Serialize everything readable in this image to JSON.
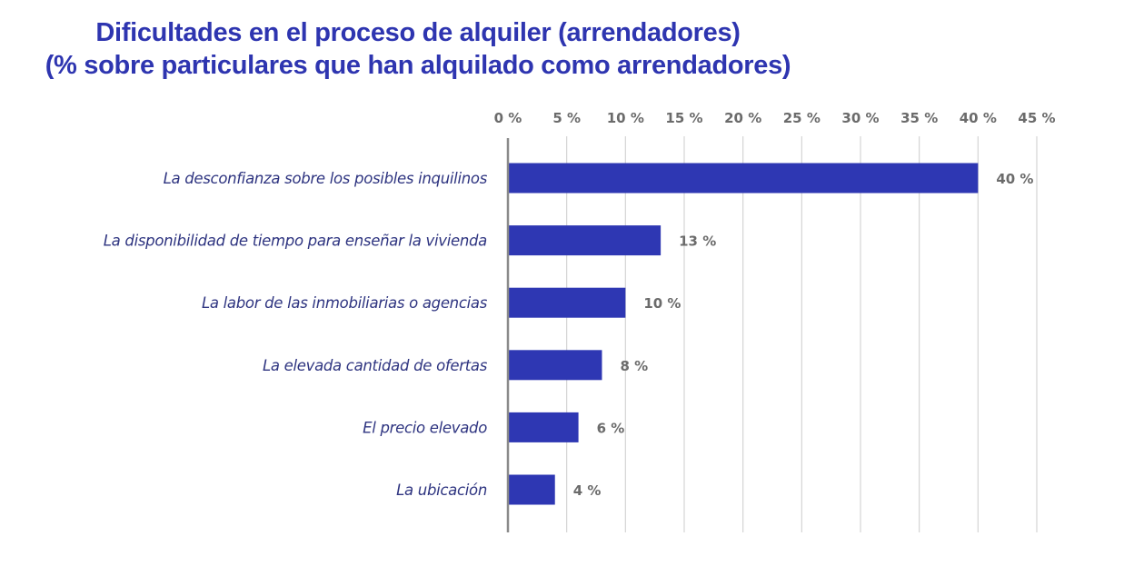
{
  "chart_data": {
    "type": "bar",
    "orientation": "horizontal",
    "title_lines": [
      "Dificultades en el proceso de alquiler (arrendadores)",
      "(% sobre particulares que han alquilado como arrendadores)"
    ],
    "categories": [
      "La desconfianza sobre los posibles inquilinos",
      "La disponibilidad de tiempo para enseñar la vivienda",
      "La labor de las inmobiliarias o agencias",
      "La elevada cantidad de ofertas",
      "El precio elevado",
      "La ubicación"
    ],
    "values": [
      40,
      13,
      10,
      8,
      6,
      4
    ],
    "data_labels": [
      "40 %",
      "13 %",
      "10 %",
      "8 %",
      "6 %",
      "4 %"
    ],
    "xlim": [
      0,
      45
    ],
    "xticks": [
      0,
      5,
      10,
      15,
      20,
      25,
      30,
      35,
      40,
      45
    ],
    "xtick_labels": [
      "0 %",
      "5 %",
      "10 %",
      "15 %",
      "20 %",
      "25 %",
      "30 %",
      "35 %",
      "40 %",
      "45 %"
    ],
    "x_axis_position": "top",
    "grid": true,
    "xlabel": "",
    "ylabel": "",
    "legend": "none",
    "colors": {
      "bar": "#2e37b3",
      "title": "#2e35b0",
      "category": "#2e3480",
      "tick": "#6b6b6b",
      "grid": "#d4d4d4",
      "axis": "#8a8a8a"
    }
  }
}
